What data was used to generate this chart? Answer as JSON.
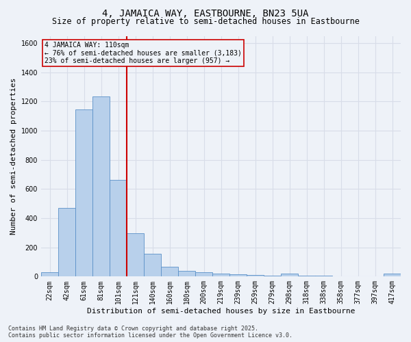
{
  "title": "4, JAMAICA WAY, EASTBOURNE, BN23 5UA",
  "subtitle": "Size of property relative to semi-detached houses in Eastbourne",
  "xlabel": "Distribution of semi-detached houses by size in Eastbourne",
  "ylabel": "Number of semi-detached properties",
  "categories": [
    "22sqm",
    "42sqm",
    "61sqm",
    "81sqm",
    "101sqm",
    "121sqm",
    "140sqm",
    "160sqm",
    "180sqm",
    "200sqm",
    "219sqm",
    "239sqm",
    "259sqm",
    "279sqm",
    "298sqm",
    "318sqm",
    "338sqm",
    "358sqm",
    "377sqm",
    "397sqm",
    "417sqm"
  ],
  "values": [
    28,
    470,
    1145,
    1235,
    665,
    295,
    155,
    65,
    38,
    30,
    20,
    15,
    12,
    8,
    22,
    8,
    5,
    3,
    2,
    2,
    18
  ],
  "bar_color": "#b8d0eb",
  "bar_edge_color": "#5a90c8",
  "vline_x_idx": 4,
  "vline_color": "#cc0000",
  "annotation_line1": "4 JAMAICA WAY: 110sqm",
  "annotation_line2": "← 76% of semi-detached houses are smaller (3,183)",
  "annotation_line3": "23% of semi-detached houses are larger (957) →",
  "annotation_box_color": "#cc0000",
  "ylim": [
    0,
    1650
  ],
  "yticks": [
    0,
    200,
    400,
    600,
    800,
    1000,
    1200,
    1400,
    1600
  ],
  "footer": "Contains HM Land Registry data © Crown copyright and database right 2025.\nContains public sector information licensed under the Open Government Licence v3.0.",
  "bg_color": "#eef2f8",
  "grid_color": "#d8dde8",
  "title_fontsize": 10,
  "subtitle_fontsize": 8.5,
  "axis_label_fontsize": 8,
  "tick_fontsize": 7,
  "annotation_fontsize": 7,
  "footer_fontsize": 6
}
